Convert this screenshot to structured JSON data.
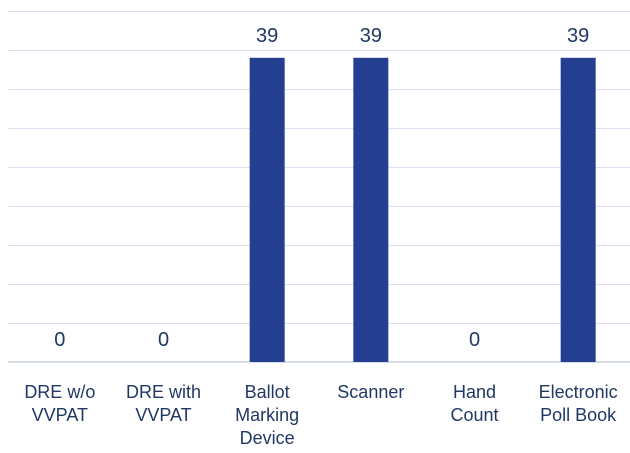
{
  "chart_data": {
    "type": "bar",
    "categories": [
      [
        "DRE w/o",
        "VVPAT"
      ],
      [
        "DRE with",
        "VVPAT"
      ],
      [
        "Ballot",
        "Marking",
        "Device"
      ],
      [
        "Scanner"
      ],
      [
        "Hand",
        "Count"
      ],
      [
        "Electronic",
        "Poll Book"
      ]
    ],
    "values": [
      0,
      0,
      39,
      39,
      0,
      39
    ],
    "data_labels": [
      "0",
      "0",
      "39",
      "39",
      "0",
      "39"
    ],
    "ylim": [
      0,
      45
    ],
    "grid": true,
    "legend": "none",
    "colors": {
      "bar": "#243f8f",
      "text": "#1f3864",
      "grid": "#d9e1f2"
    }
  }
}
